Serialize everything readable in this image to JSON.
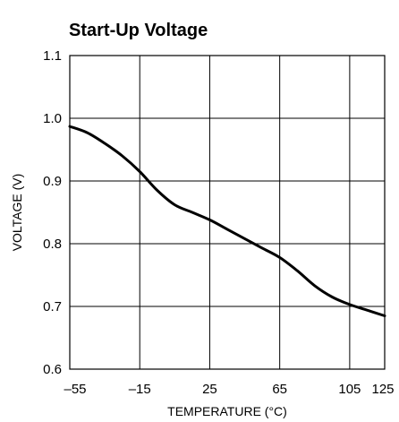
{
  "chart_data": {
    "type": "line",
    "title": "Start-Up Voltage",
    "xlabel": "TEMPERATURE (°C)",
    "ylabel": "VOLTAGE (V)",
    "xlim": [
      -55,
      125
    ],
    "ylim": [
      0.6,
      1.1
    ],
    "x_ticks": [
      -55,
      -15,
      25,
      65,
      105,
      125
    ],
    "x_tick_labels": [
      "–55",
      "–15",
      "25",
      "65",
      "105",
      "125"
    ],
    "y_ticks": [
      0.6,
      0.7,
      0.8,
      0.9,
      1.0,
      1.1
    ],
    "y_tick_labels": [
      "0.6",
      "0.7",
      "0.8",
      "0.9",
      "1.0",
      "1.1"
    ],
    "x_grid": [
      -15,
      25,
      65,
      105
    ],
    "y_grid": [
      0.7,
      0.8,
      0.9,
      1.0
    ],
    "grid": true,
    "series": [
      {
        "x": [
          -55,
          -45,
          -35,
          -25,
          -15,
          -5,
          5,
          15,
          25,
          35,
          45,
          55,
          65,
          75,
          85,
          95,
          105,
          115,
          125
        ],
        "y": [
          0.987,
          0.977,
          0.96,
          0.94,
          0.915,
          0.885,
          0.862,
          0.85,
          0.838,
          0.823,
          0.808,
          0.793,
          0.778,
          0.757,
          0.733,
          0.715,
          0.703,
          0.694,
          0.685
        ]
      }
    ]
  }
}
